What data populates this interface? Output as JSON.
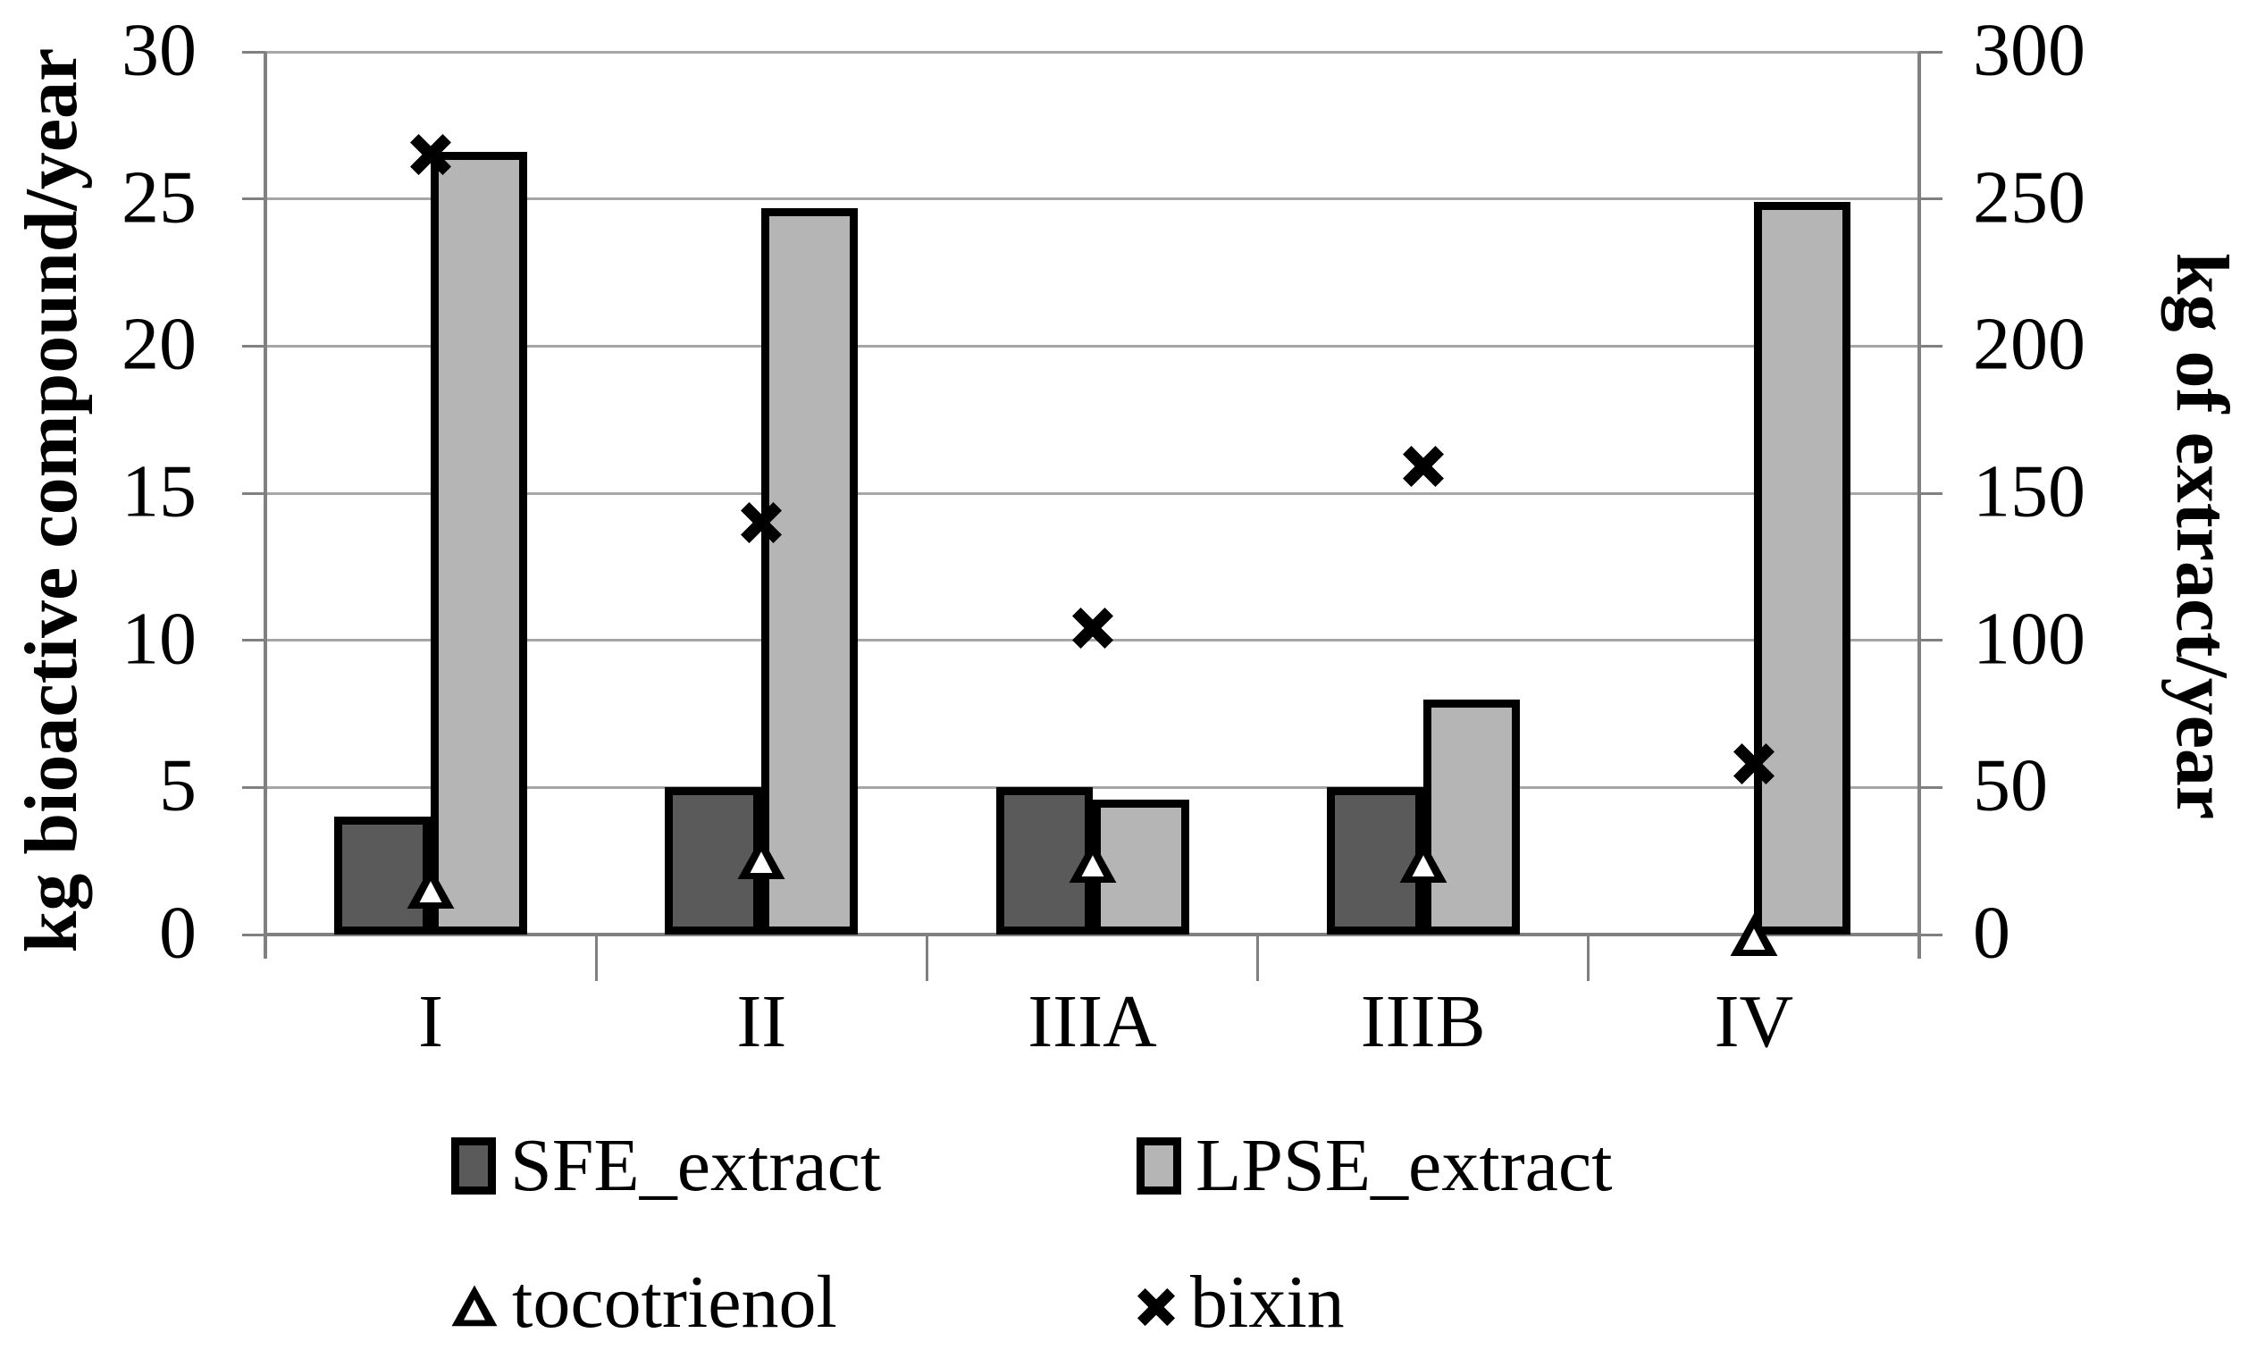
{
  "figure": {
    "background": "#ffffff",
    "grid_color": "#a6a6a6",
    "axis_color": "#808080",
    "text_color": "#000000"
  },
  "chart_data": {
    "type": "bar",
    "subtype": "clustered-bar-with-scatter-markers-dual-axis",
    "categories": [
      "I",
      "II",
      "IIIA",
      "IIIB",
      "IV"
    ],
    "series": [
      {
        "name": "SFE_extract",
        "kind": "bar",
        "axis": "right",
        "color": "#5a5a5a",
        "border_color": "#000000",
        "values": [
          40,
          50,
          50,
          50,
          0
        ]
      },
      {
        "name": "LPSE_extract",
        "kind": "bar",
        "axis": "right",
        "color": "#b5b5b5",
        "border_color": "#000000",
        "values": [
          266,
          247,
          46,
          80,
          249
        ]
      },
      {
        "name": "tocotrienol",
        "kind": "scatter",
        "marker": "triangle",
        "axis": "left",
        "color": "#000000",
        "values": [
          1.6,
          2.6,
          2.5,
          2.5,
          0
        ]
      },
      {
        "name": "bixin",
        "kind": "scatter",
        "marker": "x",
        "axis": "left",
        "color": "#000000",
        "values": [
          26.5,
          14,
          10.4,
          15.9,
          5.8
        ]
      }
    ],
    "left_axis": {
      "title": "kg bioactive compound/year",
      "min": 0,
      "max": 30,
      "ticks": [
        0,
        5,
        10,
        15,
        20,
        25,
        30
      ],
      "tick_labels": [
        "0",
        "5",
        "10",
        "15",
        "20",
        "25",
        "30"
      ]
    },
    "right_axis": {
      "title": "kg of extract/year",
      "min": 0,
      "max": 300,
      "ticks": [
        0,
        50,
        100,
        150,
        200,
        250,
        300
      ],
      "tick_labels": [
        "0",
        "50",
        "100",
        "150",
        "200",
        "250",
        "300"
      ]
    },
    "grid": true,
    "legend_position": "bottom",
    "legend": [
      {
        "label": "SFE_extract",
        "marker": "bar-swatch",
        "color": "#5a5a5a"
      },
      {
        "label": "LPSE_extract",
        "marker": "bar-swatch",
        "color": "#b5b5b5"
      },
      {
        "label": "tocotrienol",
        "marker": "triangle",
        "color": "#000000"
      },
      {
        "label": "bixin",
        "marker": "x",
        "color": "#000000"
      }
    ]
  }
}
